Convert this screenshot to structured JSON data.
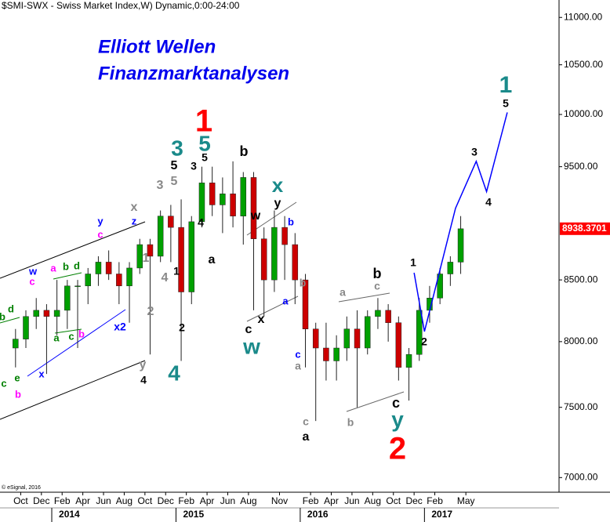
{
  "chart_data": {
    "type": "candlestick",
    "title": "$SMI-SWX - Swiss Market Index,W) Dynamic,0:00-24:00",
    "watermark": [
      "Elliott Wellen",
      "Finanzmarktanalysen"
    ],
    "copyright": "© eSignal, 2016",
    "log_scale": true,
    "up_color": "#00a000",
    "down_color": "#cc0000",
    "x": [
      "2013-09",
      "2013-10",
      "2013-11",
      "2013-12",
      "2014-01",
      "2014-02",
      "2014-03",
      "2014-04",
      "2014-05",
      "2014-06",
      "2014-07",
      "2014-08",
      "2014-09",
      "2014-10",
      "2014-11",
      "2014-12",
      "2015-01",
      "2015-02",
      "2015-03",
      "2015-04",
      "2015-05",
      "2015-06",
      "2015-07",
      "2015-08",
      "2015-09",
      "2015-10",
      "2015-11",
      "2015-12",
      "2016-01",
      "2016-02",
      "2016-03",
      "2016-04",
      "2016-05",
      "2016-06",
      "2016-07",
      "2016-08",
      "2016-09",
      "2016-10",
      "2016-11",
      "2016-12",
      "2017-01",
      "2017-02",
      "2017-03",
      "2017-04"
    ],
    "open": [
      7950,
      8020,
      8200,
      8250,
      8200,
      8250,
      8450,
      8450,
      8550,
      8650,
      8550,
      8450,
      8600,
      8800,
      8700,
      9050,
      8950,
      8400,
      9000,
      9350,
      9150,
      9250,
      9050,
      9400,
      8850,
      8500,
      8950,
      8800,
      8500,
      8100,
      7950,
      7850,
      7950,
      8100,
      7950,
      8200,
      8250,
      8150,
      7800,
      7900,
      8250,
      8350,
      8550,
      8650
    ],
    "high": [
      8100,
      8250,
      8350,
      8300,
      8500,
      8500,
      8500,
      8600,
      8700,
      8750,
      8650,
      8650,
      8850,
      8850,
      9100,
      9150,
      9200,
      9050,
      9500,
      9500,
      9400,
      9550,
      9450,
      9450,
      8950,
      9100,
      9050,
      8900,
      8550,
      8150,
      8150,
      8050,
      8200,
      8250,
      8250,
      8350,
      8300,
      8200,
      7950,
      8350,
      8450,
      8600,
      8700,
      9050
    ],
    "low": [
      7800,
      7950,
      8100,
      7750,
      8050,
      8100,
      7950,
      8300,
      8450,
      8500,
      8300,
      8150,
      8550,
      7900,
      8650,
      8650,
      7850,
      8300,
      8950,
      9050,
      8900,
      8950,
      8800,
      8250,
      8200,
      8400,
      8500,
      8300,
      7800,
      7400,
      7700,
      7700,
      7850,
      7500,
      7900,
      8100,
      8000,
      7700,
      7550,
      7850,
      8150,
      8300,
      8450,
      8550
    ],
    "close": [
      8020,
      8200,
      8250,
      8200,
      8250,
      8450,
      8450,
      8550,
      8650,
      8550,
      8450,
      8600,
      8800,
      8700,
      9050,
      8950,
      8400,
      9000,
      9350,
      9150,
      9250,
      9050,
      9400,
      8850,
      8500,
      8950,
      8800,
      8500,
      8100,
      7950,
      7850,
      7950,
      8100,
      7950,
      8200,
      8250,
      8150,
      7800,
      7900,
      8250,
      8350,
      8550,
      8650,
      8938
    ],
    "last_price": 8938.3701,
    "last_price_color": "#ff0000",
    "projection": {
      "color": "#0000ff",
      "x": [
        "2016-12",
        "2017-01",
        "2017-04",
        "2017-06",
        "2017-07",
        "2017-09"
      ],
      "values": [
        8560,
        8080,
        9120,
        9550,
        9270,
        10020
      ]
    },
    "xlim": [
      "2013-08",
      "2018-02"
    ],
    "xticks": [
      {
        "value": "2013-10",
        "label": "Oct"
      },
      {
        "value": "2013-12",
        "label": "Dec"
      },
      {
        "value": "2014-02",
        "label": "Feb"
      },
      {
        "value": "2014-04",
        "label": "Apr"
      },
      {
        "value": "2014-06",
        "label": "Jun"
      },
      {
        "value": "2014-08",
        "label": "Aug"
      },
      {
        "value": "2014-10",
        "label": "Oct"
      },
      {
        "value": "2014-12",
        "label": "Dec"
      },
      {
        "value": "2015-02",
        "label": "Feb"
      },
      {
        "value": "2015-04",
        "label": "Apr"
      },
      {
        "value": "2015-06",
        "label": "Jun"
      },
      {
        "value": "2015-08",
        "label": "Aug"
      },
      {
        "value": "2015-11",
        "label": "Nov"
      },
      {
        "value": "2016-02",
        "label": "Feb"
      },
      {
        "value": "2016-04",
        "label": "Apr"
      },
      {
        "value": "2016-06",
        "label": "Jun"
      },
      {
        "value": "2016-08",
        "label": "Aug"
      },
      {
        "value": "2016-10",
        "label": "Oct"
      },
      {
        "value": "2016-12",
        "label": "Dec"
      },
      {
        "value": "2017-02",
        "label": "Feb"
      },
      {
        "value": "2017-05",
        "label": "May"
      }
    ],
    "year_ticks": [
      {
        "value": "2014-01",
        "label": "2014"
      },
      {
        "value": "2015-01",
        "label": "2015"
      },
      {
        "value": "2016-01",
        "label": "2016"
      },
      {
        "value": "2017-01",
        "label": "2017"
      }
    ],
    "ylim": [
      6900,
      11190
    ],
    "yticks": [
      {
        "value": 11000,
        "label": "11000.00"
      },
      {
        "value": 10500,
        "label": "10500.00"
      },
      {
        "value": 10000,
        "label": "10000.00"
      },
      {
        "value": 9500,
        "label": "9500.00"
      },
      {
        "value": 8500,
        "label": "8500.00"
      },
      {
        "value": 8000,
        "label": "8000.00"
      },
      {
        "value": 7500,
        "label": "7500.00"
      },
      {
        "value": 7000,
        "label": "7000.00"
      }
    ],
    "annotations": [
      {
        "text": "b",
        "color": "#008000"
      },
      {
        "text": "d",
        "color": "#008000"
      },
      {
        "text": "c",
        "color": "#008000"
      },
      {
        "text": "e",
        "color": "#008000"
      },
      {
        "text": "b",
        "color": "#ff00ff"
      },
      {
        "text": "x",
        "color": "#0000ff"
      },
      {
        "text": "c",
        "color": "#ff00ff"
      },
      {
        "text": "w",
        "color": "#0000ff"
      },
      {
        "text": "a",
        "color": "#ff00ff"
      },
      {
        "text": "b",
        "color": "#008000"
      },
      {
        "text": "d",
        "color": "#008000"
      },
      {
        "text": "a",
        "color": "#008000"
      },
      {
        "text": "c",
        "color": "#008000"
      },
      {
        "text": "b",
        "color": "#ff00ff"
      },
      {
        "text": "y",
        "color": "#0000ff"
      },
      {
        "text": "c",
        "color": "#ff00ff"
      },
      {
        "text": "x",
        "color": "#888888"
      },
      {
        "text": "z",
        "color": "#0000ff"
      },
      {
        "text": "x2",
        "color": "#0000ff"
      },
      {
        "text": "1",
        "color": "#888888"
      },
      {
        "text": "2",
        "color": "#888888"
      },
      {
        "text": "4",
        "color": "#888888"
      },
      {
        "text": "1",
        "color": "#000000"
      },
      {
        "text": "2",
        "color": "#000000"
      },
      {
        "text": "3",
        "color": "#888888"
      },
      {
        "text": "5",
        "color": "#888888"
      },
      {
        "text": "5",
        "color": "#000000"
      },
      {
        "text": "3",
        "color": "#1a8a8a"
      },
      {
        "text": "4",
        "color": "#1a8a8a"
      },
      {
        "text": "y",
        "color": "#888888"
      },
      {
        "text": "4",
        "color": "#000000"
      },
      {
        "text": "1",
        "color": "#ff0000"
      },
      {
        "text": "5",
        "color": "#1a8a8a"
      },
      {
        "text": "3",
        "color": "#000000"
      },
      {
        "text": "5",
        "color": "#000000"
      },
      {
        "text": "4",
        "color": "#000000"
      },
      {
        "text": "a",
        "color": "#000000"
      },
      {
        "text": "b",
        "color": "#000000"
      },
      {
        "text": "w",
        "color": "#000000"
      },
      {
        "text": "x",
        "color": "#1a8a8a"
      },
      {
        "text": "y",
        "color": "#000000"
      },
      {
        "text": "b",
        "color": "#0000ff"
      },
      {
        "text": "c",
        "color": "#000000"
      },
      {
        "text": "x",
        "color": "#000000"
      },
      {
        "text": "w",
        "color": "#1a8a8a"
      },
      {
        "text": "a",
        "color": "#0000ff"
      },
      {
        "text": "b",
        "color": "#888888"
      },
      {
        "text": "c",
        "color": "#0000ff"
      },
      {
        "text": "a",
        "color": "#888888"
      },
      {
        "text": "c",
        "color": "#888888"
      },
      {
        "text": "a",
        "color": "#000000"
      },
      {
        "text": "a",
        "color": "#888888"
      },
      {
        "text": "c",
        "color": "#888888"
      },
      {
        "text": "b",
        "color": "#000000"
      },
      {
        "text": "b",
        "color": "#888888"
      },
      {
        "text": "c",
        "color": "#000000"
      },
      {
        "text": "y",
        "color": "#1a8a8a"
      },
      {
        "text": "2",
        "color": "#ff0000"
      },
      {
        "text": "1",
        "color": "#000000"
      },
      {
        "text": "2",
        "color": "#000000"
      },
      {
        "text": "3",
        "color": "#000000"
      },
      {
        "text": "4",
        "color": "#000000"
      },
      {
        "text": "1",
        "color": "#1a8a8a"
      },
      {
        "text": "5",
        "color": "#000000"
      }
    ]
  }
}
